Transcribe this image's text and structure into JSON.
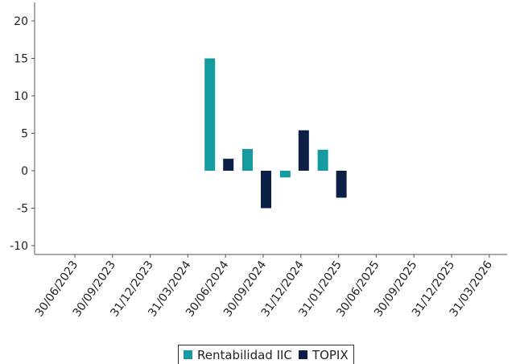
{
  "chart_data": {
    "type": "bar",
    "title": "",
    "xlabel": "",
    "ylabel": "",
    "ylim": [
      -11,
      20.5
    ],
    "yticks": [
      20,
      15,
      10,
      5,
      0,
      -5,
      -10
    ],
    "categories": [
      "30/06/2023",
      "30/09/2023",
      "31/12/2023",
      "31/03/2024",
      "30/06/2024",
      "30/09/2024",
      "31/12/2024",
      "31/01/2025",
      "30/06/2025",
      "30/09/2025",
      "31/12/2025",
      "31/03/2026"
    ],
    "series": [
      {
        "name": "Rentabilidad IIC",
        "color": "#139ba0",
        "values": [
          null,
          null,
          null,
          null,
          15.0,
          2.9,
          -0.9,
          2.8,
          null,
          null,
          null,
          null
        ]
      },
      {
        "name": "TOPIX",
        "color": "#0c1f47",
        "values": [
          null,
          null,
          null,
          null,
          1.6,
          -5.0,
          5.4,
          -3.6,
          null,
          null,
          null,
          null
        ]
      }
    ],
    "grid": false,
    "legend_position": "bottom"
  }
}
